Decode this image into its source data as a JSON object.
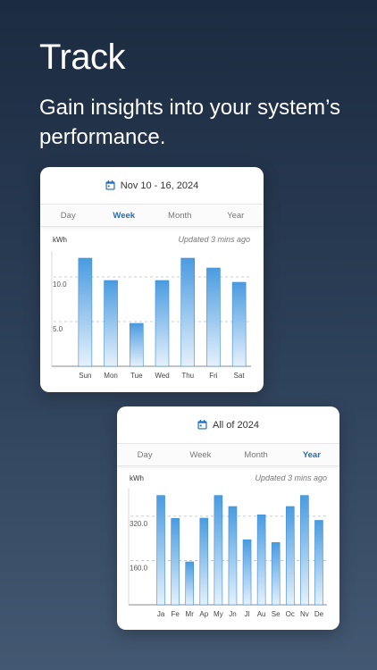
{
  "page": {
    "title": "Track",
    "subtitle": "Gain insights into your system’s performance."
  },
  "colors": {
    "accent": "#1f6fc0",
    "bar_top": "#4a9be0",
    "bar_bottom": "#e6f1fb",
    "bar_stroke": "#3d8ed6"
  },
  "weekly": {
    "date_label": "Nov 10 - 16, 2024",
    "calendar_icon": "calendar-icon",
    "tabs": [
      {
        "label": "Day",
        "active": false
      },
      {
        "label": "Week",
        "active": true
      },
      {
        "label": "Month",
        "active": false
      },
      {
        "label": "Year",
        "active": false
      }
    ],
    "unit": "kWh",
    "updated": "Updated 3 mins ago"
  },
  "yearly": {
    "date_label": "All of 2024",
    "calendar_icon": "calendar-icon",
    "tabs": [
      {
        "label": "Day",
        "active": false
      },
      {
        "label": "Week",
        "active": false
      },
      {
        "label": "Month",
        "active": false
      },
      {
        "label": "Year",
        "active": true
      }
    ],
    "unit": "kWh",
    "updated": "Updated 3 mins ago"
  },
  "chart_data": [
    {
      "type": "bar",
      "categories": [
        "Sun",
        "Mon",
        "Tue",
        "Wed",
        "Thu",
        "Fri",
        "Sat"
      ],
      "values": [
        12.1,
        9.6,
        4.8,
        9.6,
        12.1,
        11.0,
        9.4
      ],
      "ylabel": "kWh",
      "yticks": [
        5.0,
        10.0
      ],
      "ytick_labels": [
        "5.0",
        "10.0"
      ],
      "ylim": [
        0,
        12.1
      ],
      "grid": "dashed at ticks"
    },
    {
      "type": "bar",
      "categories": [
        "Ja",
        "Fe",
        "Mr",
        "Ap",
        "My",
        "Jn",
        "Jl",
        "Au",
        "Se",
        "Oc",
        "Nv",
        "De"
      ],
      "values": [
        395,
        312,
        155,
        313,
        395,
        355,
        235,
        325,
        225,
        355,
        395,
        305
      ],
      "ylabel": "kWh",
      "yticks": [
        160.0,
        320.0
      ],
      "ytick_labels": [
        "160.0",
        "320.0"
      ],
      "ylim": [
        0,
        397
      ],
      "grid": "dashed at ticks"
    }
  ]
}
